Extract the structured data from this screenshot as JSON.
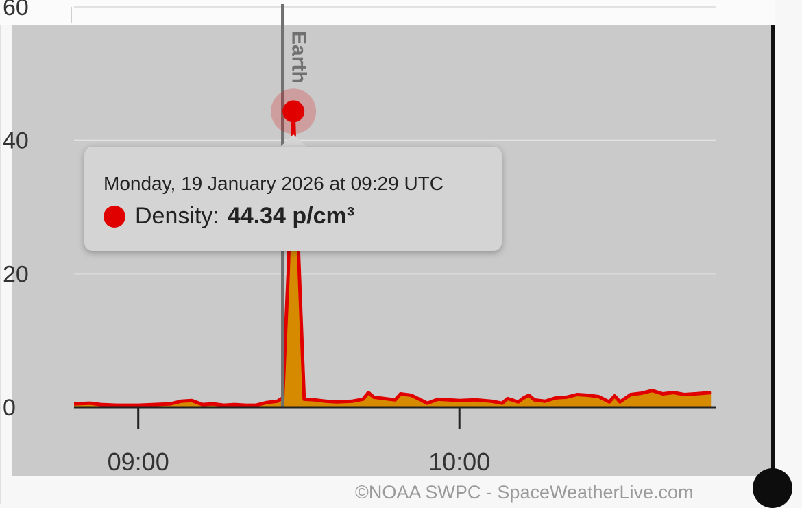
{
  "chart_data": {
    "type": "area",
    "ylim": [
      0,
      60
    ],
    "yticks": [
      "0",
      "20",
      "40",
      "60"
    ],
    "xticks": [
      {
        "label": "09:00",
        "t": "09:00"
      },
      {
        "label": "10:00",
        "t": "10:00"
      }
    ],
    "xlim": [
      "08:48",
      "10:48"
    ],
    "series": [
      {
        "name": "Density",
        "color": "#e00000",
        "fill": "#d58a00",
        "unit": "p/cm³",
        "points": [
          [
            "08:48",
            0.5
          ],
          [
            "08:51",
            0.6
          ],
          [
            "08:53",
            0.4
          ],
          [
            "08:56",
            0.3
          ],
          [
            "09:00",
            0.3
          ],
          [
            "09:03",
            0.4
          ],
          [
            "09:06",
            0.5
          ],
          [
            "09:08",
            0.9
          ],
          [
            "09:10",
            1.0
          ],
          [
            "09:12",
            0.4
          ],
          [
            "09:14",
            0.5
          ],
          [
            "09:16",
            0.3
          ],
          [
            "09:18",
            0.4
          ],
          [
            "09:20",
            0.3
          ],
          [
            "09:22",
            0.3
          ],
          [
            "09:24",
            0.7
          ],
          [
            "09:26",
            0.9
          ],
          [
            "09:27",
            1.4
          ],
          [
            "09:28",
            20.0
          ],
          [
            "09:29",
            44.34
          ],
          [
            "09:30",
            22.0
          ],
          [
            "09:31",
            1.2
          ],
          [
            "09:33",
            1.1
          ],
          [
            "09:35",
            0.9
          ],
          [
            "09:37",
            0.8
          ],
          [
            "09:40",
            0.9
          ],
          [
            "09:42",
            1.2
          ],
          [
            "09:43",
            2.2
          ],
          [
            "09:44",
            1.5
          ],
          [
            "09:46",
            1.3
          ],
          [
            "09:48",
            1.1
          ],
          [
            "09:49",
            2.0
          ],
          [
            "09:51",
            1.8
          ],
          [
            "09:52",
            1.4
          ],
          [
            "09:54",
            0.6
          ],
          [
            "09:56",
            1.2
          ],
          [
            "09:58",
            1.1
          ],
          [
            "10:00",
            1.0
          ],
          [
            "10:03",
            1.1
          ],
          [
            "10:06",
            0.9
          ],
          [
            "10:08",
            0.6
          ],
          [
            "10:09",
            1.3
          ],
          [
            "10:11",
            0.8
          ],
          [
            "10:12",
            1.4
          ],
          [
            "10:13",
            1.8
          ],
          [
            "10:14",
            1.1
          ],
          [
            "10:16",
            0.9
          ],
          [
            "10:18",
            1.4
          ],
          [
            "10:20",
            1.5
          ],
          [
            "10:22",
            1.9
          ],
          [
            "10:24",
            1.8
          ],
          [
            "10:26",
            1.6
          ],
          [
            "10:28",
            0.8
          ],
          [
            "10:29",
            1.7
          ],
          [
            "10:30",
            0.8
          ],
          [
            "10:32",
            1.9
          ],
          [
            "10:34",
            2.1
          ],
          [
            "10:36",
            2.5
          ],
          [
            "10:38",
            2.0
          ],
          [
            "10:40",
            2.2
          ],
          [
            "10:42",
            1.9
          ],
          [
            "10:44",
            2.0
          ],
          [
            "10:47",
            2.2
          ]
        ]
      }
    ],
    "earth_marker": {
      "label": "Earth",
      "t": "09:27"
    },
    "tooltip": {
      "date": "Monday, 19 January 2026 at 09:29 UTC",
      "series_label": "Density:",
      "value": "44.34 p/cm³"
    },
    "highlight": {
      "t": "09:29",
      "value": 44.34
    }
  },
  "credit": "©NOAA SWPC - SpaceWeatherLive.com"
}
